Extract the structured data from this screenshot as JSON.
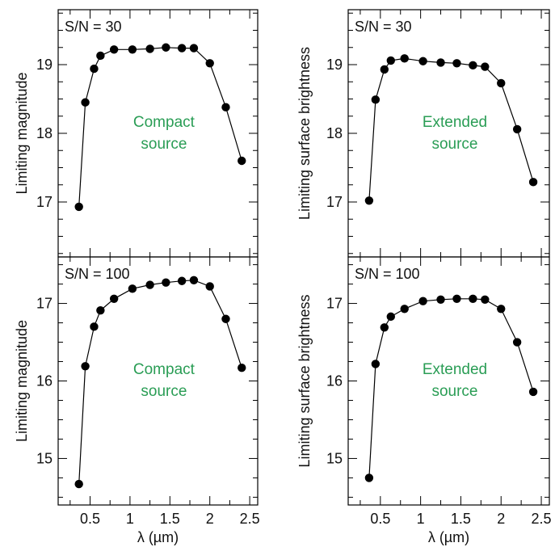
{
  "chart_data": [
    {
      "type": "line",
      "panel": "top-left",
      "ylabel": "Limiting magnitude",
      "annotation_top": "S/N = 30",
      "annotation": [
        "Compact",
        "source"
      ],
      "annotation_color": "#2a9d55",
      "xlim": [
        0.1,
        2.6
      ],
      "ylim": [
        16.2,
        19.8
      ],
      "yticks": [
        17,
        18,
        19
      ],
      "xticks": [
        0.5,
        1,
        1.5,
        2,
        2.5
      ],
      "show_xticklabels": false,
      "x": [
        0.36,
        0.44,
        0.55,
        0.63,
        0.8,
        1.03,
        1.25,
        1.45,
        1.65,
        1.8,
        2.0,
        2.2,
        2.4
      ],
      "y": [
        16.93,
        18.45,
        18.94,
        19.13,
        19.22,
        19.22,
        19.23,
        19.25,
        19.24,
        19.24,
        19.02,
        18.38,
        17.6
      ]
    },
    {
      "type": "line",
      "panel": "top-right",
      "ylabel": "Limiting surface brightness",
      "annotation_top": "S/N = 30",
      "annotation": [
        "Extended",
        "source"
      ],
      "annotation_color": "#2a9d55",
      "xlim": [
        0.1,
        2.6
      ],
      "ylim": [
        16.2,
        19.8
      ],
      "yticks": [
        17,
        18,
        19
      ],
      "xticks": [
        0.5,
        1,
        1.5,
        2,
        2.5
      ],
      "show_xticklabels": false,
      "x": [
        0.36,
        0.44,
        0.55,
        0.63,
        0.8,
        1.03,
        1.25,
        1.45,
        1.65,
        1.8,
        2.0,
        2.2,
        2.4
      ],
      "y": [
        17.02,
        18.49,
        18.93,
        19.06,
        19.09,
        19.05,
        19.03,
        19.02,
        18.99,
        18.97,
        18.73,
        18.06,
        17.29
      ]
    },
    {
      "type": "line",
      "panel": "bottom-left",
      "ylabel": "Limiting magnitude",
      "xlabel": "λ (µm)",
      "annotation_top": "S/N = 100",
      "annotation": [
        "Compact",
        "source"
      ],
      "annotation_color": "#2a9d55",
      "xlim": [
        0.1,
        2.6
      ],
      "ylim": [
        14.4,
        17.6
      ],
      "yticks": [
        15,
        16,
        17
      ],
      "xticks": [
        0.5,
        1,
        1.5,
        2,
        2.5
      ],
      "xticklabels": [
        "0.5",
        "1",
        "1.5",
        "2",
        "2.5"
      ],
      "show_xticklabels": true,
      "x": [
        0.36,
        0.44,
        0.55,
        0.63,
        0.8,
        1.03,
        1.25,
        1.45,
        1.65,
        1.8,
        2.0,
        2.2,
        2.4
      ],
      "y": [
        14.67,
        16.19,
        16.7,
        16.91,
        17.06,
        17.19,
        17.24,
        17.27,
        17.29,
        17.3,
        17.22,
        16.8,
        16.17
      ]
    },
    {
      "type": "line",
      "panel": "bottom-right",
      "ylabel": "Limiting surface brightness",
      "xlabel": "λ (µm)",
      "annotation_top": "S/N = 100",
      "annotation": [
        "Extended",
        "source"
      ],
      "annotation_color": "#2a9d55",
      "xlim": [
        0.1,
        2.6
      ],
      "ylim": [
        14.4,
        17.6
      ],
      "yticks": [
        15,
        16,
        17
      ],
      "xticks": [
        0.5,
        1,
        1.5,
        2,
        2.5
      ],
      "xticklabels": [
        "0.5",
        "1",
        "1.5",
        "2",
        "2.5"
      ],
      "show_xticklabels": true,
      "x": [
        0.36,
        0.44,
        0.55,
        0.63,
        0.8,
        1.03,
        1.25,
        1.45,
        1.65,
        1.8,
        2.0,
        2.2,
        2.4
      ],
      "y": [
        14.75,
        16.22,
        16.69,
        16.83,
        16.93,
        17.03,
        17.05,
        17.06,
        17.06,
        17.05,
        16.93,
        16.5,
        15.86
      ]
    }
  ]
}
